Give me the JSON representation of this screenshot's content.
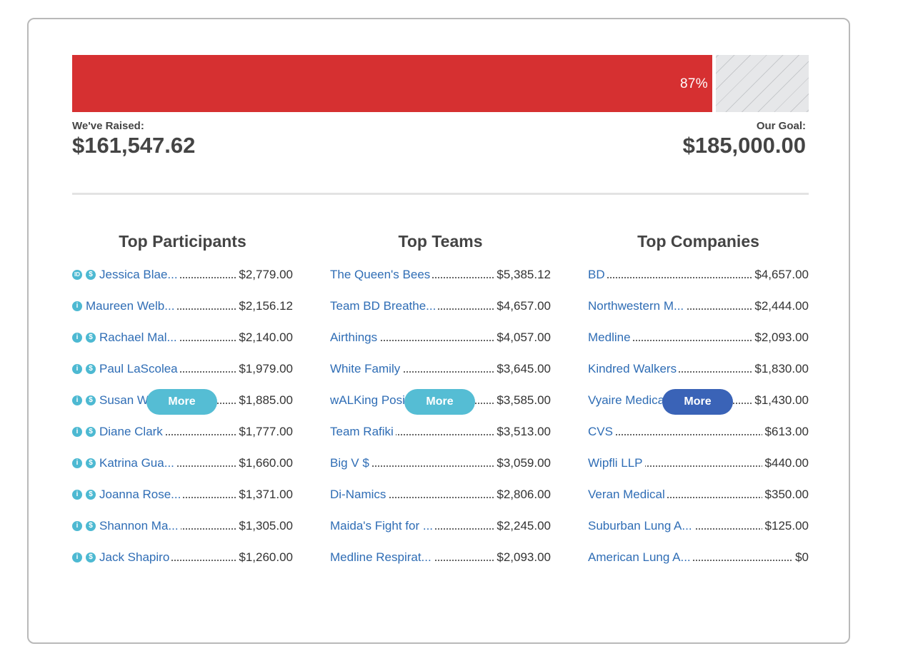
{
  "thermometer": {
    "percent_label": "87%",
    "percent": 87,
    "raised_label": "We've Raised:",
    "raised_value": "$161,547.62",
    "goal_label": "Our Goal:",
    "goal_value": "$185,000.00"
  },
  "colors": {
    "progress_fill": "#d63031",
    "link": "#2f6db5",
    "more_light": "#55bdd4",
    "more_dark": "#3a63b7",
    "icon": "#4db9d2"
  },
  "participants": {
    "title": "Top Participants",
    "more_label": "More",
    "rows": [
      {
        "name": "Jessica Blae...",
        "amount": "$2,779.00",
        "icons": [
          "badge-icon",
          "dollar-icon"
        ]
      },
      {
        "name": "Maureen Welb...",
        "amount": "$2,156.12",
        "icons": [
          "medal-icon"
        ]
      },
      {
        "name": "Rachael Mal...",
        "amount": "$2,140.00",
        "icons": [
          "medal-icon",
          "dollar-icon"
        ]
      },
      {
        "name": "Paul LaScolea",
        "amount": "$1,979.00",
        "icons": [
          "medal-icon",
          "dollar-icon"
        ]
      },
      {
        "name": "Susan Wage...",
        "amount": "$1,885.00",
        "icons": [
          "medal-icon",
          "dollar-icon"
        ]
      },
      {
        "name": "Diane Clark",
        "amount": "$1,777.00",
        "icons": [
          "medal-icon",
          "dollar-icon"
        ]
      },
      {
        "name": "Katrina Gua...",
        "amount": "$1,660.00",
        "icons": [
          "medal-icon",
          "dollar-icon"
        ]
      },
      {
        "name": "Joanna Rose...",
        "amount": "$1,371.00",
        "icons": [
          "medal-icon",
          "dollar-icon"
        ]
      },
      {
        "name": "Shannon Ma...",
        "amount": "$1,305.00",
        "icons": [
          "medal-icon",
          "dollar-icon"
        ]
      },
      {
        "name": "Jack Shapiro",
        "amount": "$1,260.00",
        "icons": [
          "medal-icon",
          "dollar-icon"
        ]
      }
    ]
  },
  "teams": {
    "title": "Top Teams",
    "more_label": "More",
    "rows": [
      {
        "name": "The Queen's Bees",
        "amount": "$5,385.12"
      },
      {
        "name": "Team BD Breathe...",
        "amount": "$4,657.00"
      },
      {
        "name": "Airthings",
        "amount": "$4,057.00"
      },
      {
        "name": "White Family",
        "amount": "$3,645.00"
      },
      {
        "name": "wALKing Positive",
        "amount": "$3,585.00"
      },
      {
        "name": "Team Rafiki",
        "amount": "$3,513.00"
      },
      {
        "name": "Big V $",
        "amount": "$3,059.00"
      },
      {
        "name": "Di-Namics",
        "amount": "$2,806.00"
      },
      {
        "name": "Maida's Fight for ...",
        "amount": "$2,245.00"
      },
      {
        "name": "Medline Respirat...",
        "amount": "$2,093.00"
      }
    ]
  },
  "companies": {
    "title": "Top Companies",
    "more_label": "More",
    "rows": [
      {
        "name": "BD",
        "amount": "$4,657.00"
      },
      {
        "name": "Northwestern M...",
        "amount": "$2,444.00"
      },
      {
        "name": "Medline",
        "amount": "$2,093.00"
      },
      {
        "name": "Kindred Walkers",
        "amount": "$1,830.00"
      },
      {
        "name": "Vyaire Medical",
        "amount": "$1,430.00"
      },
      {
        "name": "CVS",
        "amount": "$613.00"
      },
      {
        "name": "Wipfli LLP",
        "amount": "$440.00"
      },
      {
        "name": "Veran Medical",
        "amount": "$350.00"
      },
      {
        "name": "Suburban Lung A...",
        "amount": "$125.00"
      },
      {
        "name": "American Lung A...",
        "amount": "$0"
      }
    ]
  }
}
